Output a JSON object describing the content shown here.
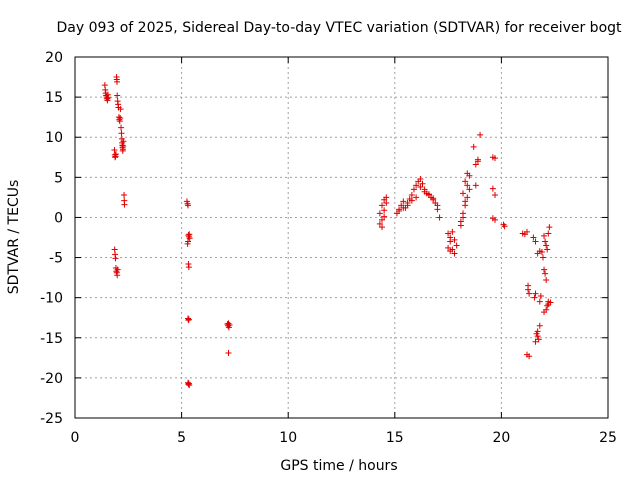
{
  "chart_data": {
    "type": "scatter",
    "title": "Day 093 of 2025, Sidereal Day-to-day VTEC variation (SDTVAR) for receiver bogt",
    "xlabel": "GPS time / hours",
    "ylabel": "SDTVAR / TECUs",
    "xlim": [
      0,
      25
    ],
    "ylim": [
      -25,
      20
    ],
    "xticks": [
      0,
      5,
      10,
      15,
      20,
      25
    ],
    "yticks": [
      -25,
      -20,
      -15,
      -10,
      -5,
      0,
      5,
      10,
      15,
      20
    ],
    "grid": true,
    "marker": "+",
    "color": "#e00000",
    "series": [
      {
        "name": "SDTVAR",
        "x": [
          1.4,
          1.42,
          1.44,
          1.46,
          1.48,
          1.5,
          1.52,
          1.54,
          1.56,
          1.85,
          1.87,
          1.88,
          1.9,
          1.92,
          1.95,
          1.96,
          1.97,
          1.98,
          2.0,
          2.02,
          2.04,
          2.06,
          2.08,
          2.1,
          2.12,
          2.14,
          2.16,
          2.18,
          2.2,
          2.21,
          2.22,
          2.23,
          2.24,
          2.25,
          2.26,
          2.27,
          2.3,
          2.31,
          2.32,
          1.86,
          1.88,
          1.9,
          1.92,
          1.94,
          1.96,
          1.98,
          2.0,
          5.25,
          5.28,
          5.3,
          5.32,
          5.34,
          5.36,
          5.38,
          5.28,
          5.3,
          5.32,
          5.34,
          5.3,
          5.32,
          5.34,
          5.3,
          5.32,
          5.34,
          5.36,
          7.15,
          7.18,
          7.2,
          7.22,
          7.25,
          7.2,
          14.3,
          14.4,
          14.5,
          14.6,
          14.3,
          14.4,
          14.5,
          14.6,
          14.4,
          14.5,
          15.1,
          15.2,
          15.3,
          15.4,
          15.5,
          15.6,
          15.7,
          15.8,
          15.9,
          16.0,
          16.1,
          16.2,
          16.3,
          16.4,
          16.5,
          16.6,
          16.7,
          16.8,
          16.9,
          17.0,
          17.1,
          15.2,
          15.4,
          15.6,
          15.8,
          16.0,
          16.2,
          16.4,
          16.6,
          16.8,
          17.0,
          17.5,
          17.6,
          17.7,
          17.8,
          17.9,
          17.6,
          17.7,
          17.8,
          17.5,
          17.6,
          18.1,
          18.2,
          18.3,
          18.4,
          18.5,
          18.1,
          18.2,
          18.3,
          18.4,
          18.5,
          18.2,
          18.3,
          18.4,
          18.7,
          18.8,
          18.9,
          19.0,
          18.9,
          18.8,
          19.6,
          19.7,
          19.6,
          19.7,
          19.6,
          19.7,
          20.1,
          20.15,
          21.0,
          21.1,
          21.2,
          21.25,
          21.3,
          21.2,
          21.3,
          21.25,
          21.5,
          21.6,
          21.7,
          21.8,
          21.55,
          21.6,
          21.65,
          21.7,
          21.75,
          21.8,
          21.85,
          21.6,
          21.7,
          21.8,
          22.0,
          22.05,
          22.1,
          22.15,
          22.2,
          22.25,
          22.0,
          22.05,
          22.1,
          22.15,
          22.2,
          22.0,
          22.1,
          22.2,
          22.3,
          21.9,
          21.95
        ],
        "y": [
          16.5,
          15.9,
          15.5,
          15.2,
          15.0,
          14.8,
          14.6,
          15.3,
          14.9,
          8.4,
          7.8,
          7.5,
          7.6,
          7.9,
          17.5,
          17.2,
          16.9,
          15.2,
          14.5,
          14.1,
          13.7,
          12.5,
          12.2,
          12.0,
          12.4,
          13.5,
          11.2,
          10.5,
          9.8,
          9.3,
          9.0,
          8.7,
          8.3,
          8.5,
          8.9,
          9.5,
          2.8,
          2.1,
          1.6,
          -4.0,
          -4.6,
          -5.1,
          -6.3,
          -6.7,
          -6.9,
          -7.2,
          -6.5,
          2.0,
          1.7,
          1.5,
          -2.2,
          -2.4,
          -2.1,
          -2.6,
          -3.3,
          -3.0,
          -5.8,
          -6.2,
          -12.6,
          -12.8,
          -12.7,
          -20.6,
          -20.8,
          -20.7,
          -20.9,
          -13.3,
          -13.5,
          -13.2,
          -13.7,
          -13.4,
          -16.9,
          0.5,
          1.5,
          2.2,
          2.5,
          -0.8,
          -1.2,
          0.1,
          1.8,
          -0.3,
          0.9,
          0.5,
          1.0,
          1.5,
          2.0,
          1.2,
          1.8,
          2.3,
          2.8,
          3.5,
          4.0,
          4.5,
          4.8,
          4.2,
          3.5,
          3.0,
          2.8,
          2.5,
          2.2,
          1.8,
          1.0,
          0.0,
          0.8,
          1.2,
          1.5,
          2.1,
          2.5,
          3.8,
          3.2,
          2.9,
          2.4,
          1.5,
          -2.0,
          -3.0,
          -4.0,
          -4.5,
          -3.5,
          -2.5,
          -1.8,
          -2.8,
          -3.8,
          -4.2,
          -0.5,
          0.5,
          1.5,
          2.5,
          3.5,
          -1.0,
          0.0,
          2.0,
          4.0,
          5.2,
          3.0,
          4.5,
          5.5,
          8.8,
          6.6,
          7.0,
          10.3,
          7.2,
          4.0,
          7.5,
          7.4,
          3.6,
          2.8,
          -0.1,
          -0.3,
          -0.9,
          -1.1,
          -2.0,
          -2.1,
          -1.8,
          -9.0,
          -9.5,
          -17.1,
          -17.3,
          -8.5,
          -2.5,
          -3.0,
          -4.5,
          -4.2,
          -10.0,
          -9.5,
          -14.5,
          -14.8,
          -15.2,
          -10.5,
          -9.8,
          -15.5,
          -14.2,
          -13.5,
          -2.3,
          -3.0,
          -3.5,
          -4.0,
          -2.0,
          -1.2,
          -6.5,
          -7.0,
          -7.8,
          -11.0,
          -10.5,
          -11.8,
          -11.5,
          -10.8,
          -10.6,
          -4.3,
          -5.0
        ]
      }
    ]
  }
}
